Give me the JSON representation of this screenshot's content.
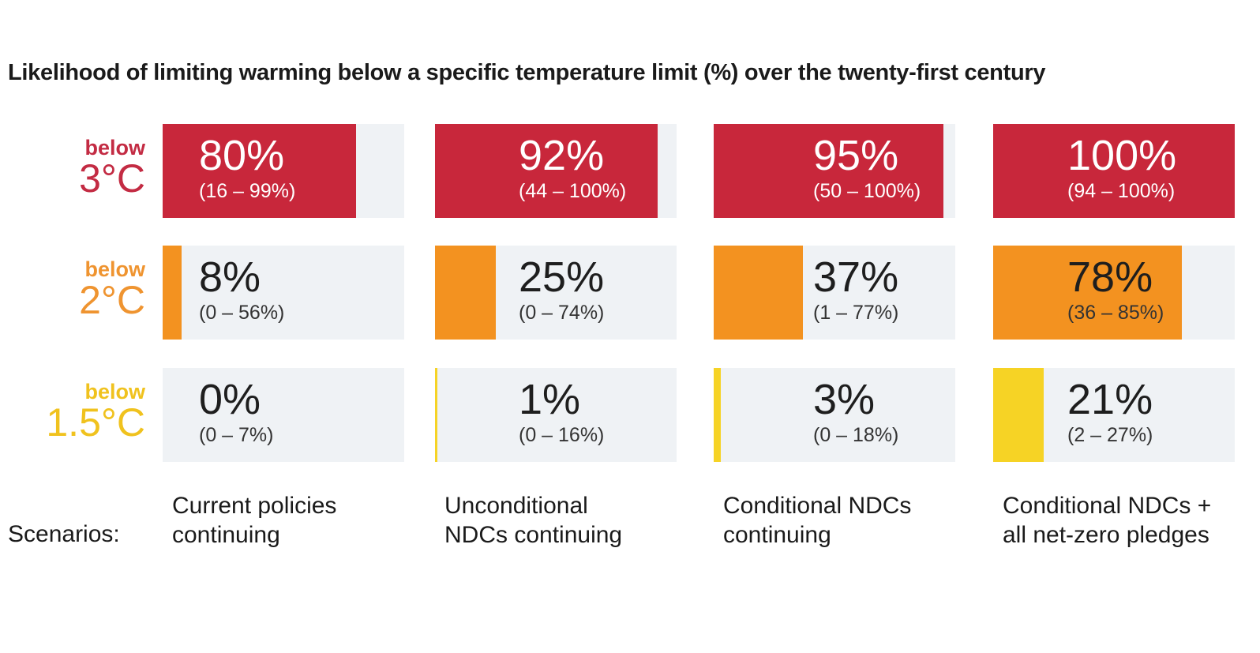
{
  "title": "Likelihood of limiting warming below a specific temperature limit (%) over the twenty-first century",
  "scenarios_label": "Scenarios:",
  "chart_data": {
    "type": "bar",
    "title": "Likelihood of limiting warming below a specific temperature limit (%) over the twenty-first century",
    "xlim": [
      0,
      100
    ],
    "categories": [
      "Current policies continuing",
      "Unconditional NDCs continuing",
      "Conditional NDCs continuing",
      "Conditional NDCs + all net-zero pledges"
    ],
    "category_lines": [
      [
        "Current policies",
        "continuing"
      ],
      [
        "Unconditional",
        "NDCs continuing"
      ],
      [
        "Conditional NDCs",
        "continuing"
      ],
      [
        "Conditional NDCs +",
        "all net-zero pledges"
      ]
    ],
    "series": [
      {
        "name": "below 3°C",
        "prefix": "below",
        "limit": "3°C",
        "color": "#c8273b",
        "values": [
          80,
          92,
          95,
          100
        ],
        "labels": [
          "80%",
          "92%",
          "95%",
          "100%"
        ],
        "ranges": [
          "(16 – 99%)",
          "(44 – 100%)",
          "(50 – 100%)",
          "(94 – 100%)"
        ]
      },
      {
        "name": "below 2°C",
        "prefix": "below",
        "limit": "2°C",
        "color": "#f39220",
        "values": [
          8,
          25,
          37,
          78
        ],
        "labels": [
          "8%",
          "25%",
          "37%",
          "78%"
        ],
        "ranges": [
          "(0 – 56%)",
          "(0 – 74%)",
          "(1 – 77%)",
          "(36 – 85%)"
        ]
      },
      {
        "name": "below 1.5°C",
        "prefix": "below",
        "limit": "1.5°C",
        "color": "#f6d325",
        "values": [
          0,
          1,
          3,
          21
        ],
        "labels": [
          "0%",
          "1%",
          "3%",
          "21%"
        ],
        "ranges": [
          "(0 – 7%)",
          "(0 – 16%)",
          "(0 – 18%)",
          "(2 – 27%)"
        ]
      }
    ],
    "label_colors": [
      "#c32b43",
      "#ef9430",
      "#f0c21e"
    ],
    "track_color": "#eff2f5"
  }
}
